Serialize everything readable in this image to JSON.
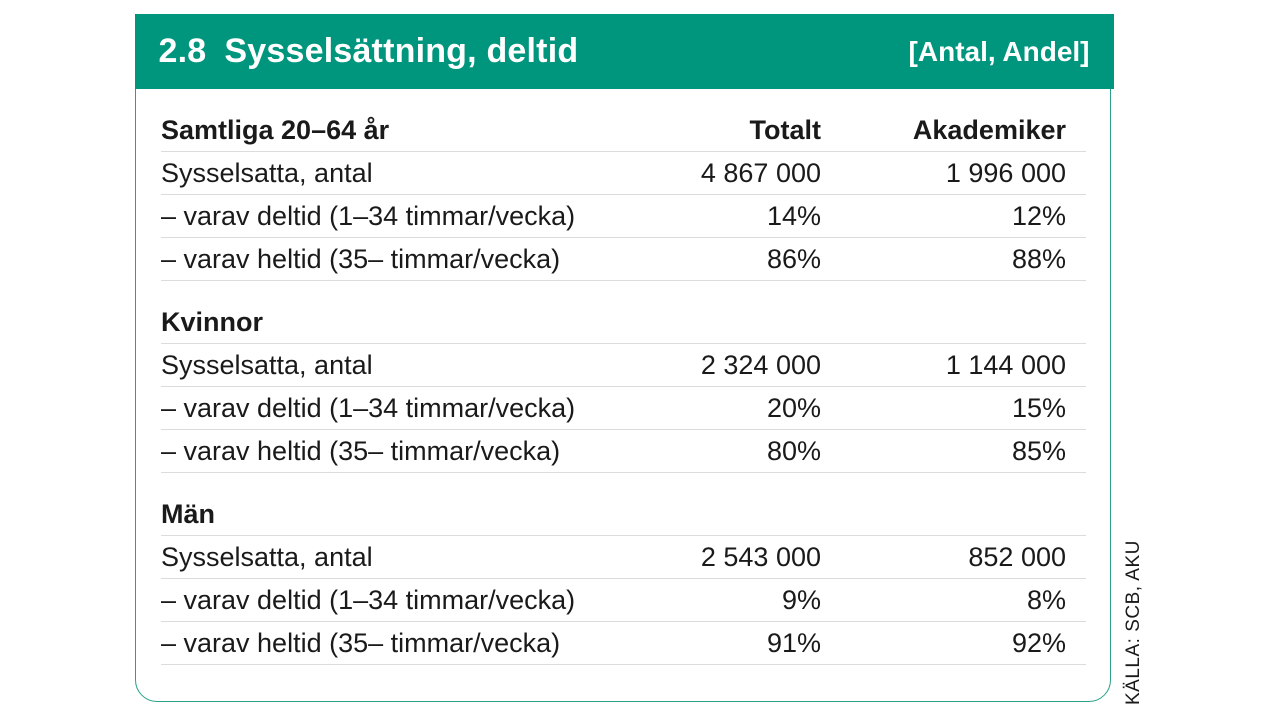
{
  "header": {
    "number": "2.8",
    "title": "Sysselsättning, deltid",
    "unit": "[Antal, Andel]"
  },
  "table": {
    "columns": [
      "Totalt",
      "Akademiker"
    ],
    "groups": [
      {
        "heading": "Samtliga 20–64 år",
        "rows": [
          {
            "label": "Sysselsatta, antal",
            "totalt": "4 867 000",
            "akademiker": "1 996 000"
          },
          {
            "label": "– varav deltid (1–34 timmar/vecka)",
            "totalt": "14%",
            "akademiker": "12%"
          },
          {
            "label": "– varav heltid (35– timmar/vecka)",
            "totalt": "86%",
            "akademiker": "88%"
          }
        ]
      },
      {
        "heading": "Kvinnor",
        "rows": [
          {
            "label": "Sysselsatta, antal",
            "totalt": "2 324 000",
            "akademiker": "1 144 000"
          },
          {
            "label": "– varav deltid (1–34 timmar/vecka)",
            "totalt": "20%",
            "akademiker": "15%"
          },
          {
            "label": "– varav heltid (35– timmar/vecka)",
            "totalt": "80%",
            "akademiker": "85%"
          }
        ]
      },
      {
        "heading": "Män",
        "rows": [
          {
            "label": "Sysselsatta, antal",
            "totalt": "2 543 000",
            "akademiker": "852 000"
          },
          {
            "label": "– varav deltid (1–34 timmar/vecka)",
            "totalt": "9%",
            "akademiker": "8%"
          },
          {
            "label": "– varav heltid (35– timmar/vecka)",
            "totalt": "91%",
            "akademiker": "92%"
          }
        ]
      }
    ]
  },
  "source": "KÄLLA: SCB, AKU",
  "colors": {
    "header_bg": "#00967d",
    "border": "#2aa08a",
    "text": "#1a1a1a"
  }
}
